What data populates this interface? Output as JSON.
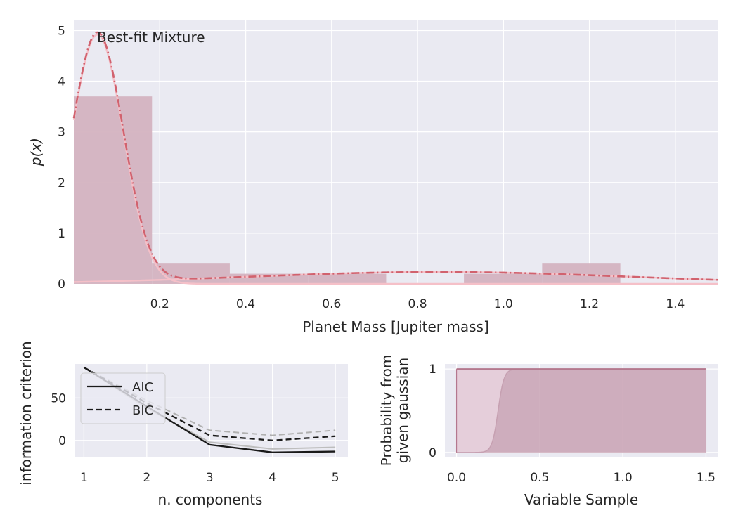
{
  "chart_data": [
    {
      "type": "histogram+line",
      "xlabel": "Planet Mass [Jupiter mass]",
      "ylabel": "p(x)",
      "annotation": "Best-fit Mixture",
      "xlim": [
        0.0,
        1.5
      ],
      "ylim": [
        0,
        5.2
      ],
      "xticks": [
        0.2,
        0.4,
        0.6,
        0.8,
        1.0,
        1.2,
        1.4
      ],
      "xtick_labels": [
        "0.2",
        "0.4",
        "0.6",
        "0.8",
        "1.0",
        "1.2",
        "1.4"
      ],
      "yticks": [
        0,
        1,
        2,
        3,
        4,
        5
      ],
      "ytick_labels": [
        "0",
        "1",
        "2",
        "3",
        "4",
        "5"
      ],
      "grid": true,
      "histogram": {
        "bins": [
          {
            "x0": 0.0,
            "x1": 0.182,
            "value": 3.7
          },
          {
            "x0": 0.182,
            "x1": 0.363,
            "value": 0.4
          },
          {
            "x0": 0.363,
            "x1": 0.545,
            "value": 0.2
          },
          {
            "x0": 0.545,
            "x1": 0.727,
            "value": 0.2
          },
          {
            "x0": 0.727,
            "x1": 0.908,
            "value": 0.0
          },
          {
            "x0": 0.908,
            "x1": 1.09,
            "value": 0.2
          },
          {
            "x0": 1.09,
            "x1": 1.272,
            "value": 0.4
          }
        ],
        "color": "#d4b3c0"
      },
      "components": [
        {
          "mu": 0.055,
          "sigma": 0.06,
          "weight": 0.74,
          "color": "#f5c0c8",
          "style": "solid"
        },
        {
          "mu": 0.85,
          "sigma": 0.44,
          "weight": 0.26,
          "color": "#f5c0c8",
          "style": "solid"
        }
      ],
      "mixture": {
        "color": "#d1626e",
        "style": "dashdot"
      }
    },
    {
      "type": "line",
      "xlabel": "n. components",
      "ylabel": "information criterion",
      "xlim": [
        0.85,
        5.2
      ],
      "ylim": [
        -20,
        90
      ],
      "xticks": [
        1,
        2,
        3,
        4,
        5
      ],
      "xtick_labels": [
        "1",
        "2",
        "3",
        "4",
        "5"
      ],
      "yticks": [
        0,
        50
      ],
      "ytick_labels": [
        "0",
        "50"
      ],
      "grid": true,
      "legend_position": "top-left",
      "x": [
        1,
        2,
        3,
        4,
        5
      ],
      "series": [
        {
          "name": "AIC",
          "values": [
            86,
            40,
            -5,
            -14,
            -13
          ],
          "color": "#1a1a1a",
          "style": "solid"
        },
        {
          "name": "BIC",
          "values": [
            86,
            44,
            6,
            0,
            5
          ],
          "color": "#1a1a1a",
          "style": "dashed"
        }
      ],
      "extra_series": [
        {
          "values": [
            86,
            47,
            12,
            6,
            12
          ],
          "color": "#b0b0b0",
          "style": "dashed"
        },
        {
          "values": [
            86,
            38,
            -2,
            -10,
            -8
          ],
          "color": "#bdbdbd",
          "style": "solid"
        }
      ]
    },
    {
      "type": "area",
      "xlabel": "Variable Sample",
      "ylabel_lines": [
        "Probability from",
        "given gaussian"
      ],
      "xlim": [
        -0.07,
        1.57
      ],
      "ylim": [
        -0.06,
        1.06
      ],
      "xticks": [
        0.0,
        0.5,
        1.0,
        1.5
      ],
      "xtick_labels": [
        "0.0",
        "0.5",
        "1.0",
        "1.5"
      ],
      "yticks": [
        0,
        1
      ],
      "ytick_labels": [
        "0",
        "1"
      ],
      "grid": true,
      "range": [
        0.0,
        1.5
      ],
      "transition": {
        "center": 0.25,
        "scale": 0.018
      },
      "colors": {
        "fill_lower": "#c9a2b4",
        "fill_upper": "#e5ccd8",
        "line_top": "#b4788e",
        "line_curve": "#c6a0b1"
      }
    }
  ]
}
